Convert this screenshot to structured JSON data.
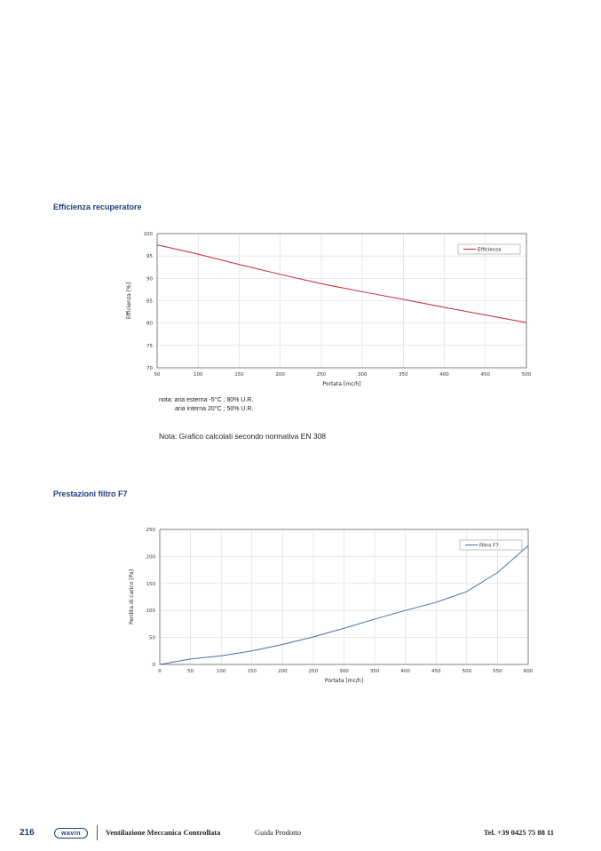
{
  "section1": {
    "title": "Efficienza recuperatore"
  },
  "section2": {
    "title": "Prestazioni filtro F7"
  },
  "notes": {
    "line1": "nota: aria esterna -5°C ; 80% U.R.",
    "line2": "aria interna 20°C ; 50% U.R.",
    "line3": "Nota: Grafico calcolati secondo normativa EN 308"
  },
  "footer": {
    "page_number": "216",
    "logo_text": "wavin",
    "title": "Ventilazione Meccanica Controllata",
    "subtitle": "Guida Prodotto",
    "phone": "Tel. +39 0425 75 88 11"
  },
  "chart_data": [
    {
      "type": "line",
      "xlabel": "Portata [mc/h]",
      "ylabel": "Efficienza [%]",
      "xlim": [
        50,
        500
      ],
      "ylim": [
        70,
        100
      ],
      "xticks": [
        50,
        100,
        150,
        200,
        250,
        300,
        350,
        400,
        450,
        500
      ],
      "yticks": [
        70,
        75,
        80,
        85,
        90,
        95,
        100
      ],
      "grid": true,
      "legend": "top-right",
      "series": [
        {
          "name": "Efficienza",
          "color": "#c9252c",
          "x": [
            50,
            100,
            150,
            200,
            250,
            300,
            350,
            400,
            450,
            500
          ],
          "y": [
            97.5,
            95.4,
            93.1,
            90.9,
            88.8,
            87.0,
            85.3,
            83.5,
            81.8,
            80.1
          ]
        }
      ]
    },
    {
      "type": "line",
      "xlabel": "Portata [mc/h]",
      "ylabel": "Perdita di carico [Pa]",
      "xlim": [
        0,
        600
      ],
      "ylim": [
        0,
        250
      ],
      "xticks": [
        0,
        50,
        100,
        150,
        200,
        250,
        300,
        350,
        400,
        450,
        500,
        550,
        600
      ],
      "yticks": [
        0,
        50,
        100,
        150,
        200,
        250
      ],
      "grid": true,
      "legend": "top-right",
      "series": [
        {
          "name": "Filtro F7",
          "color": "#4a6fa5",
          "x": [
            0,
            50,
            100,
            150,
            200,
            250,
            300,
            350,
            400,
            450,
            500,
            550,
            600
          ],
          "y": [
            0,
            10,
            16,
            25,
            37,
            51,
            67,
            84,
            100,
            115,
            135,
            170,
            220
          ]
        }
      ]
    }
  ]
}
